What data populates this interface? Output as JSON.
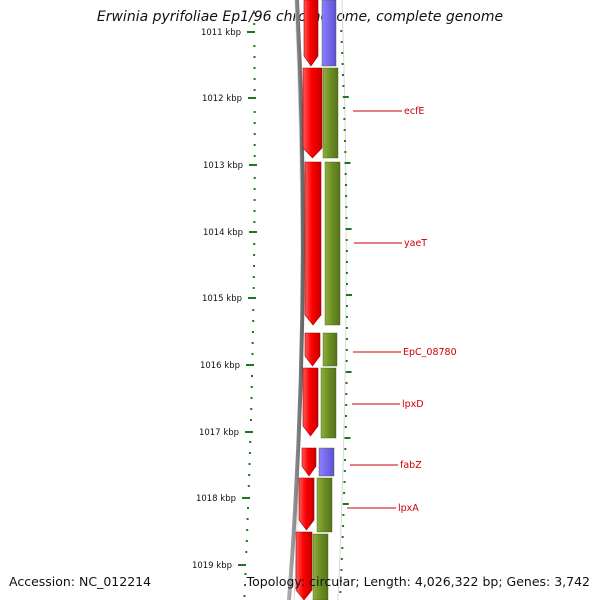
{
  "title": "Erwinia pyrifoliae Ep1/96 chromosome, complete genome",
  "accession": "Accession: NC_012214",
  "topology": "Topology: circular; Length: 4,026,322 bp; Genes: 3,742",
  "colors": {
    "cds_forward": "#ff0000",
    "cds_reverse_gene": "#6b8e23",
    "rna_feature": "#7b68ee",
    "tick": "#1a7a1a",
    "label": "#cc0000",
    "backbone": "#808080"
  },
  "ruler": {
    "unit": "kbp",
    "labels": [
      "1011 kbp",
      "1012 kbp",
      "1013 kbp",
      "1014 kbp",
      "1015 kbp",
      "1016 kbp",
      "1017 kbp",
      "1018 kbp",
      "1019 kbp"
    ]
  },
  "gene_labels": [
    "ecfE",
    "yaeT",
    "EpC_08780",
    "lpxD",
    "fabZ",
    "lpxA"
  ],
  "icons": [
    "forward-arrow-icon"
  ]
}
